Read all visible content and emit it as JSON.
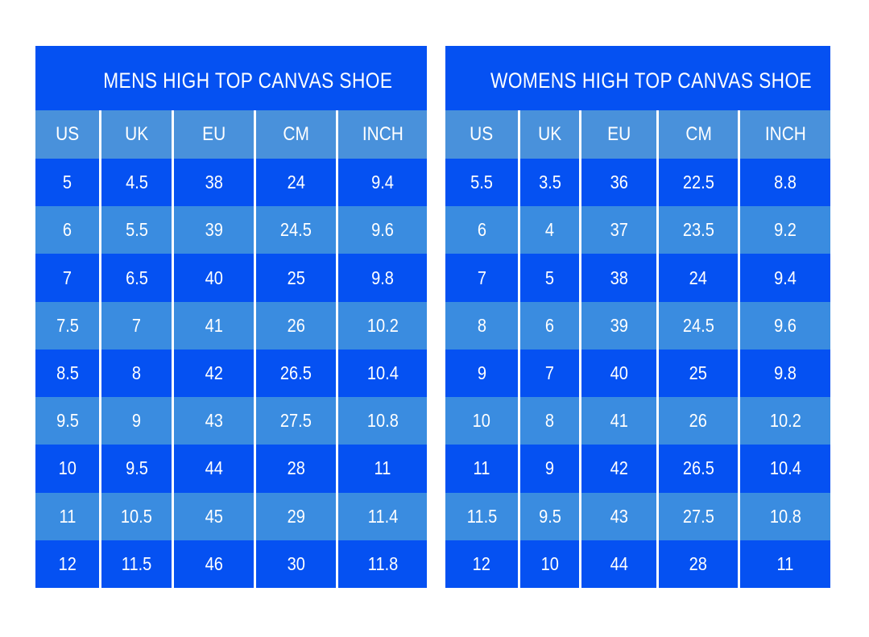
{
  "colors": {
    "primary_blue": "#0551f2",
    "light_row_blue": "#3a8ce0",
    "header_blue": "#4991db",
    "text": "#ffffff",
    "divider": "#ffffff",
    "background": "#ffffff"
  },
  "chart_data": [
    {
      "type": "table",
      "title": "MENS HIGH TOP CANVAS SHOE",
      "columns": [
        "US",
        "UK",
        "EU",
        "CM",
        "INCH"
      ],
      "rows": [
        [
          "5",
          "4.5",
          "38",
          "24",
          "9.4"
        ],
        [
          "6",
          "5.5",
          "39",
          "24.5",
          "9.6"
        ],
        [
          "7",
          "6.5",
          "40",
          "25",
          "9.8"
        ],
        [
          "7.5",
          "7",
          "41",
          "26",
          "10.2"
        ],
        [
          "8.5",
          "8",
          "42",
          "26.5",
          "10.4"
        ],
        [
          "9.5",
          "9",
          "43",
          "27.5",
          "10.8"
        ],
        [
          "10",
          "9.5",
          "44",
          "28",
          "11"
        ],
        [
          "11",
          "10.5",
          "45",
          "29",
          "11.4"
        ],
        [
          "12",
          "11.5",
          "46",
          "30",
          "11.8"
        ]
      ]
    },
    {
      "type": "table",
      "title": "WOMENS HIGH TOP CANVAS SHOE",
      "columns": [
        "US",
        "UK",
        "EU",
        "CM",
        "INCH"
      ],
      "rows": [
        [
          "5.5",
          "3.5",
          "36",
          "22.5",
          "8.8"
        ],
        [
          "6",
          "4",
          "37",
          "23.5",
          "9.2"
        ],
        [
          "7",
          "5",
          "38",
          "24",
          "9.4"
        ],
        [
          "8",
          "6",
          "39",
          "24.5",
          "9.6"
        ],
        [
          "9",
          "7",
          "40",
          "25",
          "9.8"
        ],
        [
          "10",
          "8",
          "41",
          "26",
          "10.2"
        ],
        [
          "11",
          "9",
          "42",
          "26.5",
          "10.4"
        ],
        [
          "11.5",
          "9.5",
          "43",
          "27.5",
          "10.8"
        ],
        [
          "12",
          "10",
          "44",
          "28",
          "11"
        ]
      ]
    }
  ]
}
